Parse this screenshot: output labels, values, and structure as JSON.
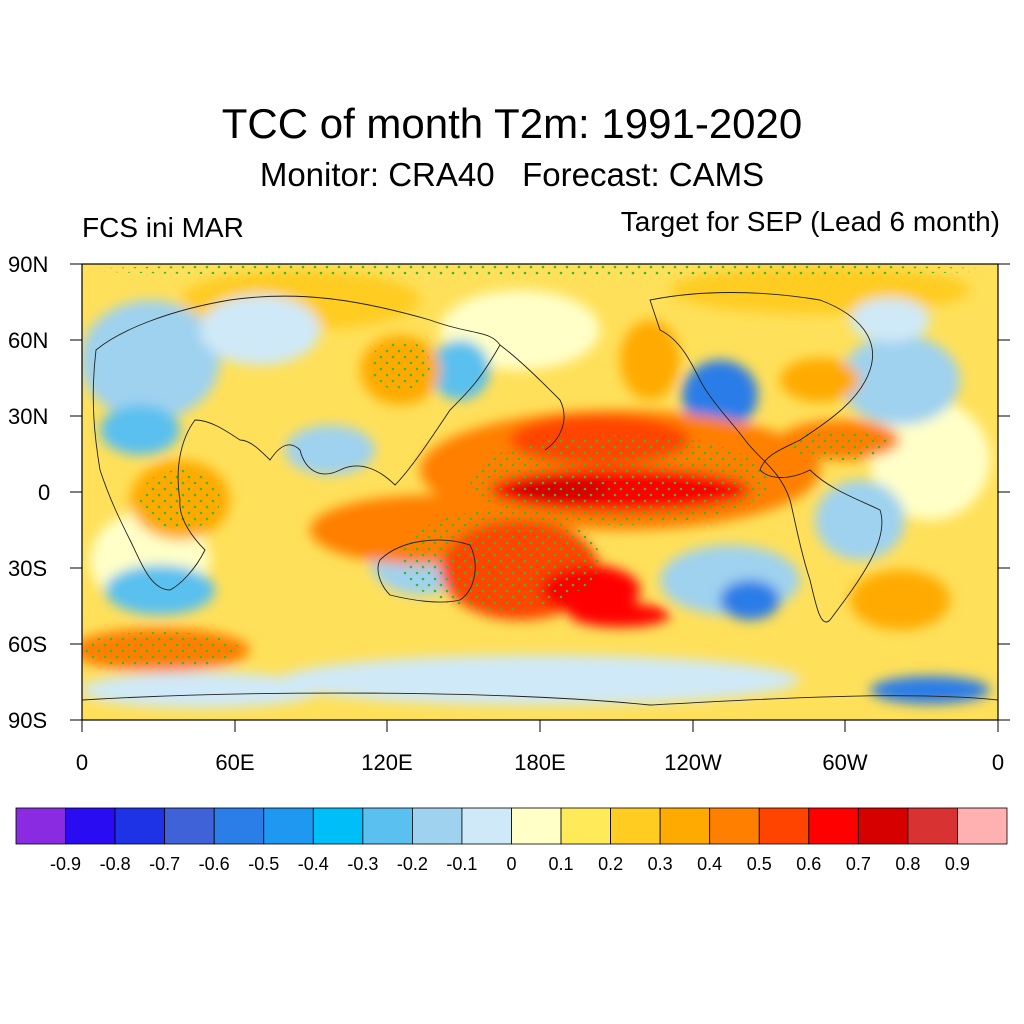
{
  "title": "TCC of month T2m: 1991-2020",
  "subtitle": "Monitor: CRA40   Forecast: CAMS",
  "left_label": "FCS ini MAR",
  "right_label": "Target for SEP (Lead 6 month)",
  "lat_labels": [
    "90N",
    "60N",
    "30N",
    "0",
    "30S",
    "60S",
    "90S"
  ],
  "lon_labels": [
    "0",
    "60E",
    "120E",
    "180E",
    "120W",
    "60W",
    "0"
  ],
  "colorbar": {
    "colors": [
      "#8a2be2",
      "#2a0cf2",
      "#1f33e6",
      "#3f62d8",
      "#2b7de8",
      "#1e98f0",
      "#00bef8",
      "#5ac0ef",
      "#9fd2ef",
      "#cfe9f8",
      "#ffffc8",
      "#ffeb5a",
      "#ffcc22",
      "#ffaa00",
      "#ff7f00",
      "#ff4400",
      "#ff0000",
      "#d60000",
      "#d93232",
      "#ffb0b0"
    ],
    "labels": [
      "-0.9",
      "-0.8",
      "-0.7",
      "-0.6",
      "-0.5",
      "-0.4",
      "-0.3",
      "-0.2",
      "-0.1",
      "0",
      "0.1",
      "0.2",
      "0.3",
      "0.4",
      "0.5",
      "0.6",
      "0.7",
      "0.8",
      "0.9"
    ]
  }
}
